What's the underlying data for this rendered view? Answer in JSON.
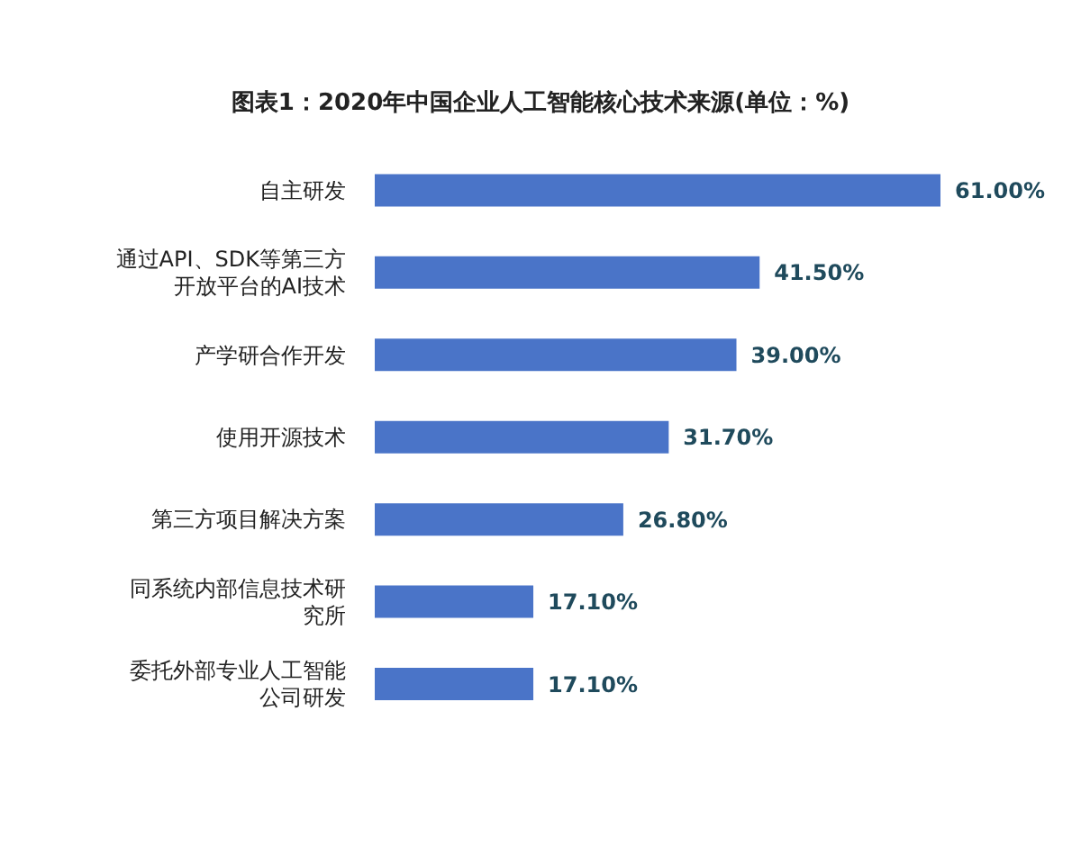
{
  "chart_data": {
    "type": "bar",
    "orientation": "horizontal",
    "title": "图表1：2020年中国企业人工智能核心技术来源(单位：%)",
    "categories": [
      "自主研发",
      "通过API、SDK等第三方开放平台的AI技术",
      "产学研合作开发",
      "使用开源技术",
      "第三方项目解决方案",
      "同系统内部信息技术研究所",
      "委托外部专业人工智能公司研发"
    ],
    "values": [
      61,
      41.5,
      39,
      31.7,
      26.8,
      17.1,
      17.1
    ],
    "value_labels": [
      "61.00%",
      "41.50%",
      "39.00%",
      "31.70%",
      "26.80%",
      "17.10%",
      "17.10%"
    ],
    "color": "#4a74c8"
  }
}
